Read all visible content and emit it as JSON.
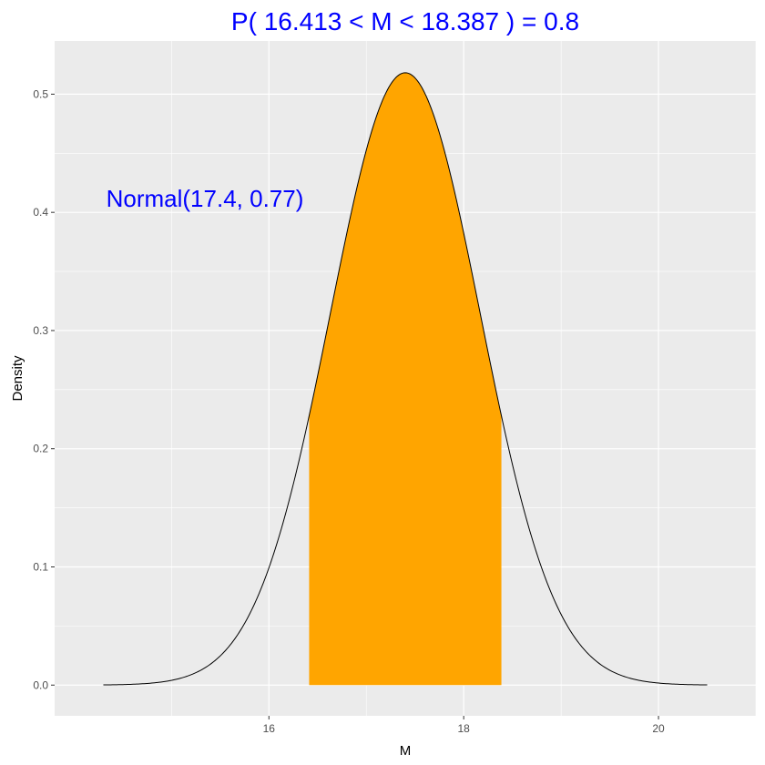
{
  "chart_data": {
    "type": "area",
    "title": "P( 16.413 < M <  18.387 ) = 0.8",
    "xlabel": "M",
    "ylabel": "Density",
    "annotation": "Normal(17.4, 0.77)",
    "distribution": {
      "family": "normal",
      "mean": 17.4,
      "sd": 0.77
    },
    "curve_domain": [
      14.3,
      20.5
    ],
    "shaded_interval": [
      16.413,
      18.387
    ],
    "shaded_probability": 0.8,
    "xlim": [
      13.8,
      21.0
    ],
    "ylim": [
      -0.026,
      0.545
    ],
    "x_ticks": [
      "16",
      "18",
      "20"
    ],
    "y_ticks": [
      "0.0",
      "0.1",
      "0.2",
      "0.3",
      "0.4",
      "0.5"
    ],
    "grid": true,
    "colors": {
      "panel_background": "#ebebeb",
      "grid": "#ffffff",
      "fill": "#ffa500",
      "curve": "#000000",
      "title": "#0000ff",
      "annotation": "#0000ff"
    }
  }
}
